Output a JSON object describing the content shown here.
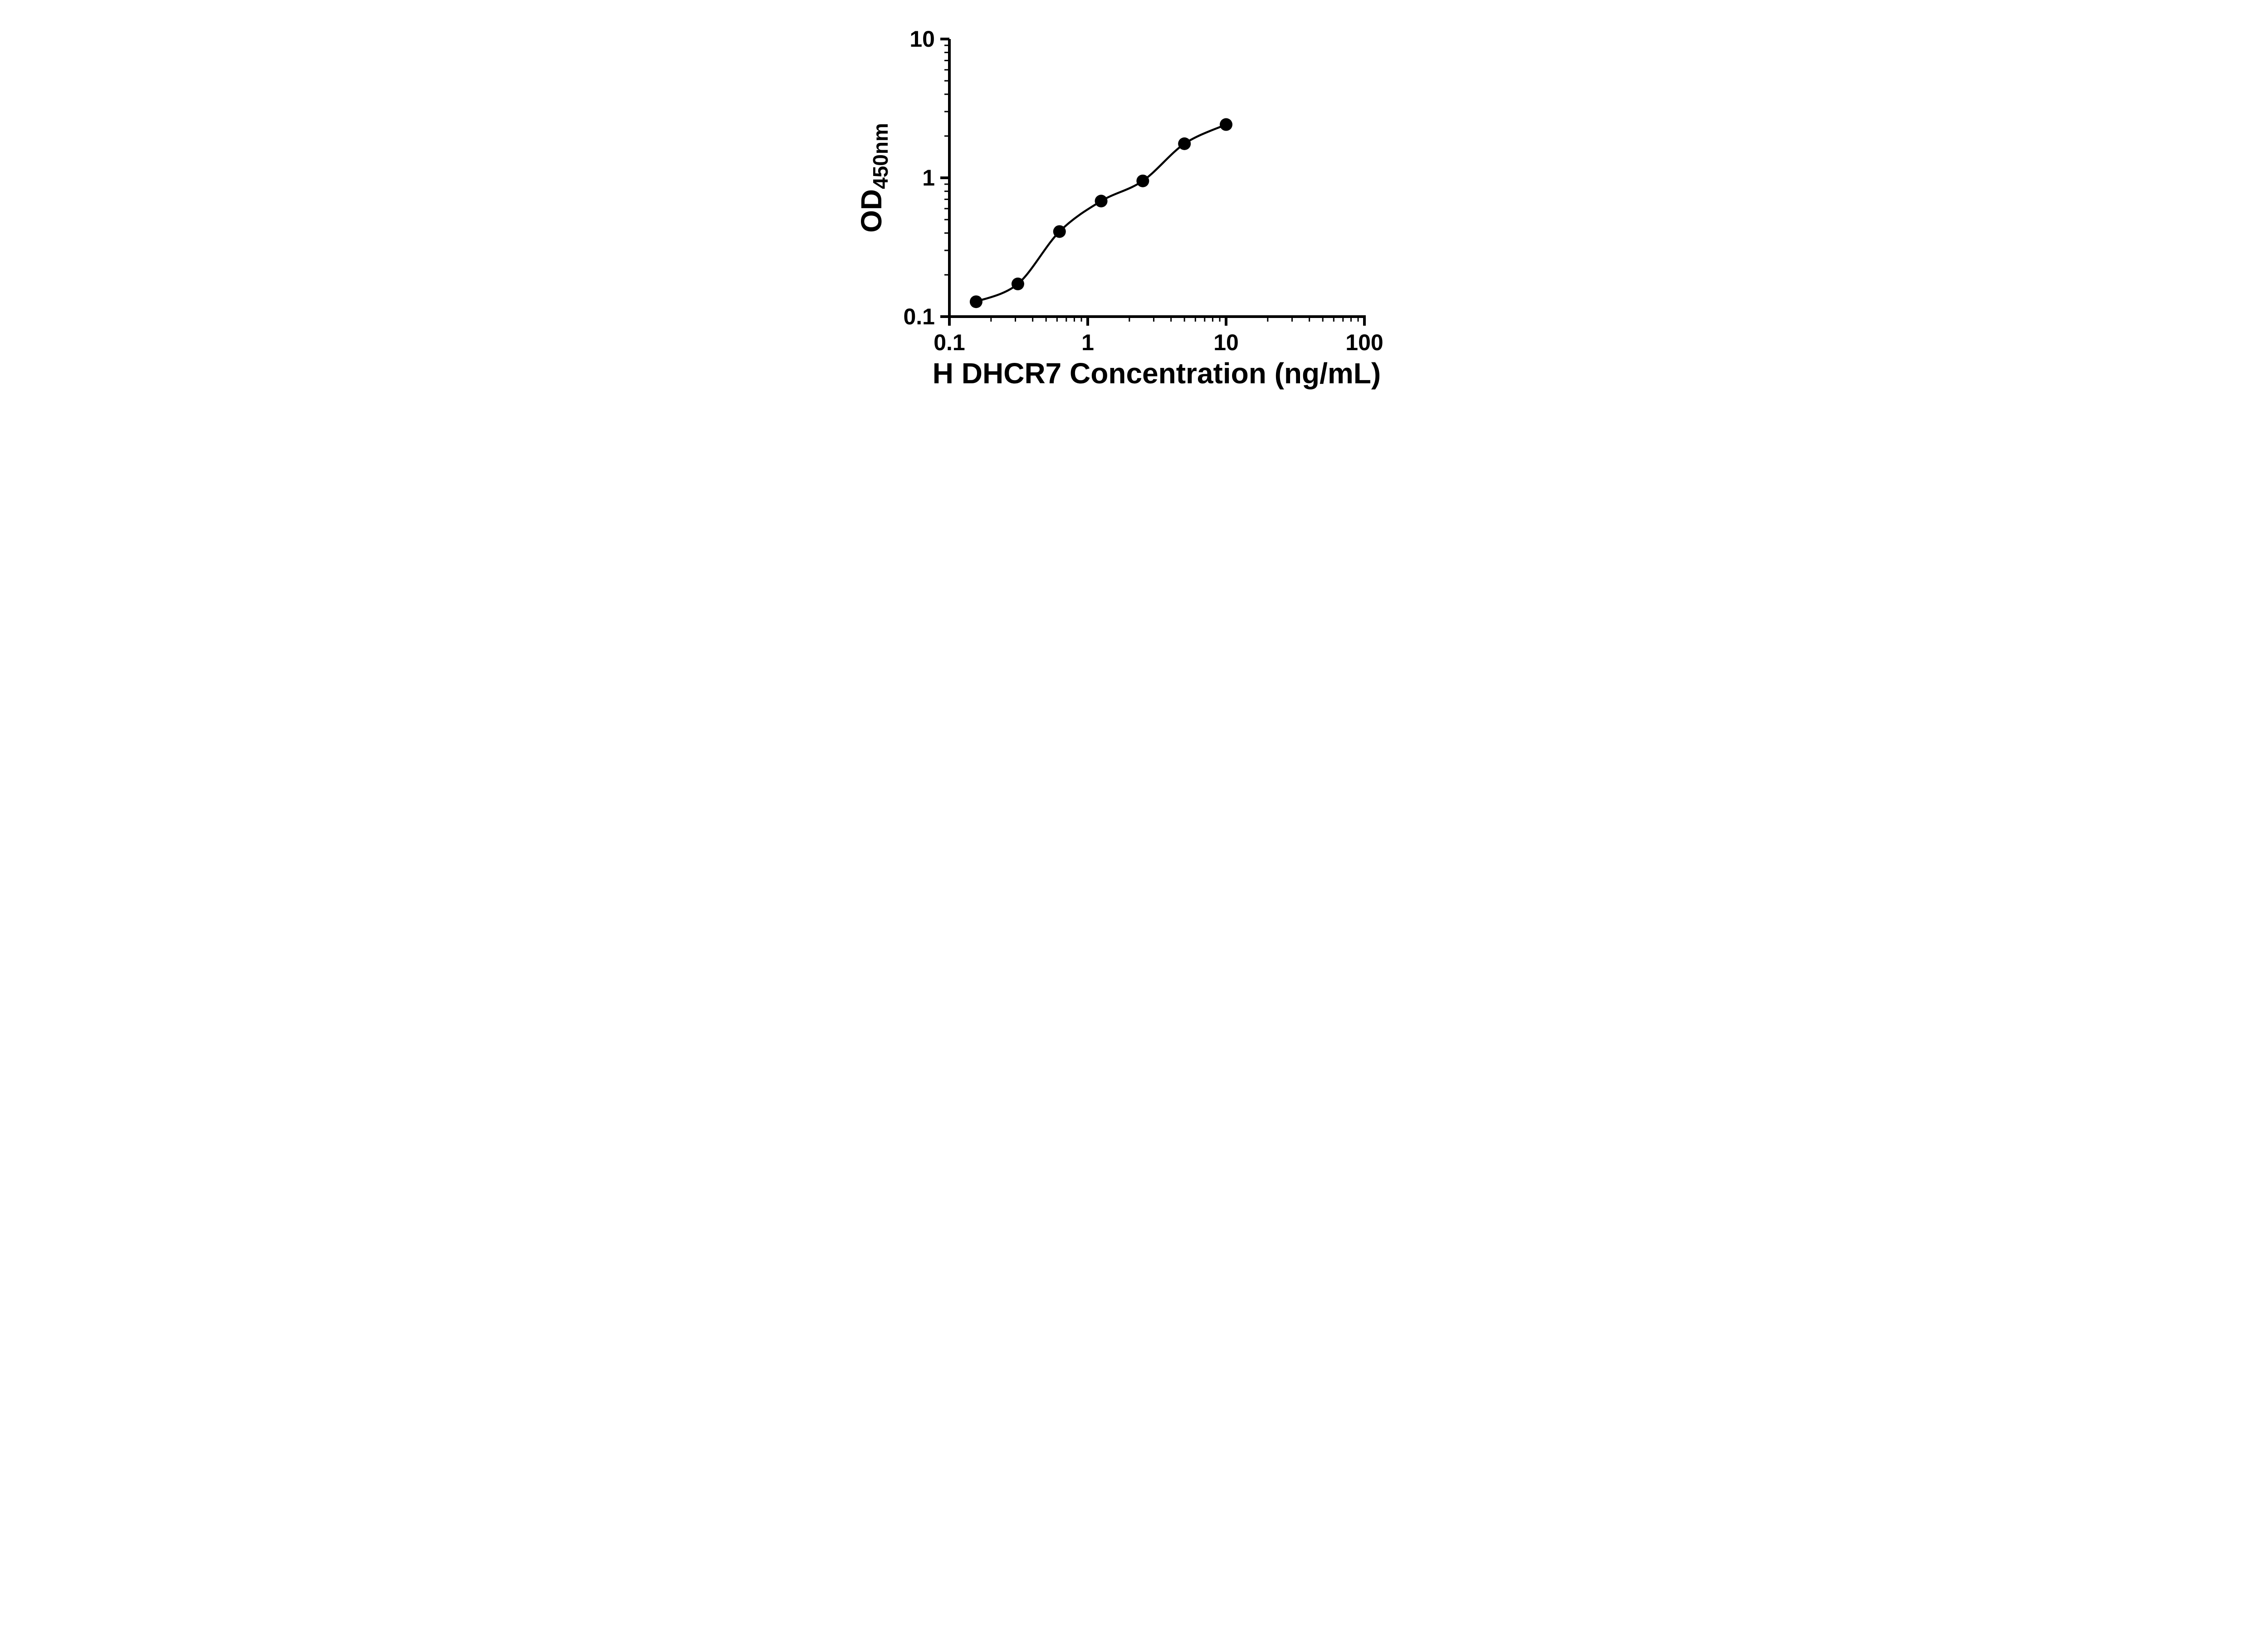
{
  "page": {
    "background": "#ffffff"
  },
  "chart_data": {
    "type": "scatter",
    "title": "",
    "xlabel": "H DHCR7 Concentration (ng/mL)",
    "ylabel": "OD450nm",
    "ylabel_main": "OD",
    "ylabel_sub": "450nm",
    "x_scale": "log",
    "y_scale": "log",
    "xlim": [
      0.1,
      100
    ],
    "ylim": [
      0.1,
      10
    ],
    "grid": false,
    "legend": null,
    "axis_color": "#000000",
    "x_ticks": [
      {
        "value": 0.1,
        "label": "0.1"
      },
      {
        "value": 1,
        "label": "1"
      },
      {
        "value": 10,
        "label": "10"
      },
      {
        "value": 100,
        "label": "100"
      }
    ],
    "y_ticks": [
      {
        "value": 0.1,
        "label": "0.1"
      },
      {
        "value": 1,
        "label": "1"
      },
      {
        "value": 10,
        "label": "10"
      }
    ],
    "minor_ticks": "log",
    "series": [
      {
        "marker": "circle",
        "color": "#000000",
        "line": "smooth-fit",
        "points": [
          {
            "x": 0.156,
            "y": 0.128
          },
          {
            "x": 0.3125,
            "y": 0.172
          },
          {
            "x": 0.625,
            "y": 0.41
          },
          {
            "x": 1.25,
            "y": 0.68
          },
          {
            "x": 2.5,
            "y": 0.95
          },
          {
            "x": 5,
            "y": 1.76
          },
          {
            "x": 10,
            "y": 2.42
          }
        ]
      }
    ]
  }
}
